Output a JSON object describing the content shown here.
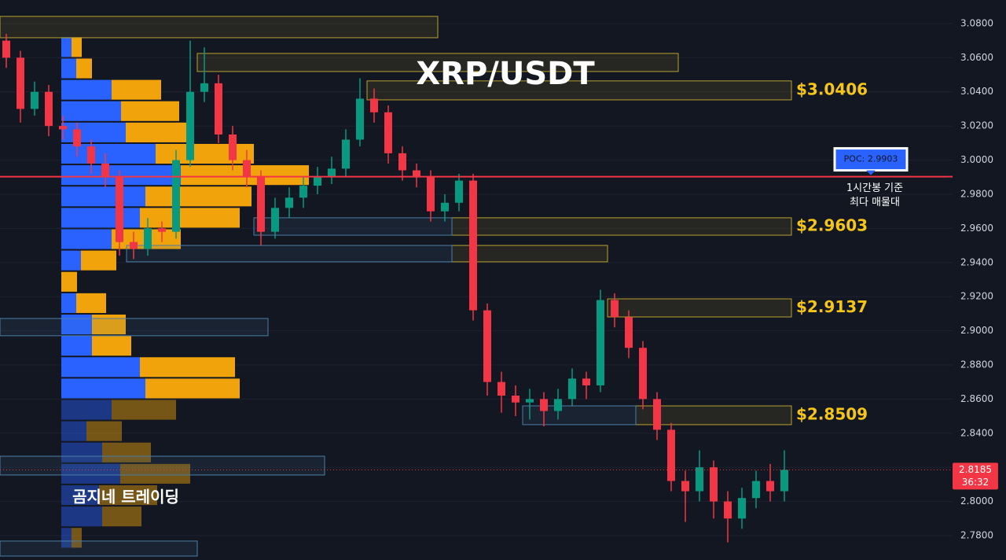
{
  "chart_data": {
    "type": "candlestick",
    "title": "XRP/USDT",
    "watermark": "곰지네 트레이딩",
    "ylim": [
      2.7657,
      3.0938
    ],
    "yticks": [
      {
        "value": 3.08,
        "label": "3.0800"
      },
      {
        "value": 3.06,
        "label": "3.0600"
      },
      {
        "value": 3.04,
        "label": "3.0400"
      },
      {
        "value": 3.02,
        "label": "3.0200"
      },
      {
        "value": 3.0,
        "label": "3.0000"
      },
      {
        "value": 2.98,
        "label": "2.9800"
      },
      {
        "value": 2.96,
        "label": "2.9600"
      },
      {
        "value": 2.94,
        "label": "2.9400"
      },
      {
        "value": 2.92,
        "label": "2.9200"
      },
      {
        "value": 2.9,
        "label": "2.9000"
      },
      {
        "value": 2.88,
        "label": "2.8800"
      },
      {
        "value": 2.86,
        "label": "2.8600"
      },
      {
        "value": 2.84,
        "label": "2.8400"
      },
      {
        "value": 2.82,
        "label": "2.8200"
      },
      {
        "value": 2.8,
        "label": "2.8000"
      },
      {
        "value": 2.78,
        "label": "2.7800"
      }
    ],
    "up_color": "#089981",
    "down_color": "#f23645",
    "open": [
      3.07,
      3.06,
      3.03,
      3.04,
      3.02,
      3.018,
      3.008,
      2.998,
      2.99,
      2.952,
      2.948,
      2.96,
      2.958,
      3.0,
      3.04,
      3.045,
      3.015,
      3.0,
      2.99,
      2.958,
      2.972,
      2.978,
      2.985,
      2.99,
      2.995,
      3.012,
      3.036,
      3.028,
      3.004,
      2.994,
      2.99,
      2.97,
      2.975,
      2.988,
      2.912,
      2.87,
      2.862,
      2.858,
      2.86,
      2.853,
      2.86,
      2.872,
      2.868,
      2.918,
      2.908,
      2.89,
      2.86,
      2.842,
      2.812,
      2.806,
      2.82,
      2.8,
      2.79,
      2.802,
      2.812,
      2.806
    ],
    "high": [
      3.074,
      3.064,
      3.046,
      3.044,
      3.026,
      3.022,
      3.012,
      3.004,
      2.994,
      2.958,
      2.966,
      2.964,
      3.006,
      3.07,
      3.066,
      3.05,
      3.02,
      3.006,
      2.994,
      2.978,
      2.984,
      2.99,
      2.996,
      3.002,
      3.018,
      3.048,
      3.042,
      3.032,
      3.008,
      2.998,
      2.994,
      2.98,
      2.992,
      2.992,
      2.916,
      2.876,
      2.868,
      2.866,
      2.864,
      2.866,
      2.878,
      2.876,
      2.924,
      2.922,
      2.912,
      2.894,
      2.864,
      2.846,
      2.818,
      2.83,
      2.824,
      2.806,
      2.808,
      2.818,
      2.822,
      2.83
    ],
    "low": [
      3.054,
      3.022,
      3.026,
      3.014,
      3.012,
      3.002,
      2.992,
      2.984,
      2.944,
      2.942,
      2.944,
      2.952,
      2.954,
      2.996,
      3.034,
      3.01,
      2.994,
      2.984,
      2.95,
      2.954,
      2.966,
      2.972,
      2.98,
      2.986,
      2.99,
      3.008,
      3.022,
      2.998,
      2.988,
      2.984,
      2.964,
      2.964,
      2.97,
      2.906,
      2.862,
      2.852,
      2.85,
      2.848,
      2.844,
      2.848,
      2.856,
      2.86,
      2.864,
      2.902,
      2.884,
      2.854,
      2.836,
      2.806,
      2.788,
      2.8,
      2.79,
      2.776,
      2.784,
      2.796,
      2.8,
      2.8
    ],
    "close": [
      3.06,
      3.03,
      3.04,
      3.02,
      3.018,
      3.008,
      2.998,
      2.99,
      2.952,
      2.948,
      2.96,
      2.958,
      3.0,
      3.04,
      3.045,
      3.015,
      3.0,
      2.99,
      2.958,
      2.972,
      2.978,
      2.985,
      2.99,
      2.995,
      3.012,
      3.036,
      3.028,
      3.004,
      2.994,
      2.99,
      2.97,
      2.975,
      2.988,
      2.912,
      2.87,
      2.862,
      2.858,
      2.86,
      2.853,
      2.86,
      2.872,
      2.868,
      2.918,
      2.908,
      2.89,
      2.86,
      2.842,
      2.812,
      2.806,
      2.82,
      2.8,
      2.79,
      2.802,
      2.812,
      2.806,
      2.8185
    ],
    "profile": {
      "levels": [
        3.0662,
        3.0537,
        3.0412,
        3.0287,
        3.0162,
        3.0037,
        2.9912,
        2.9787,
        2.9662,
        2.9537,
        2.9412,
        2.9287,
        2.9162,
        2.9037,
        2.8912,
        2.8787,
        2.8662,
        2.8537,
        2.8412,
        2.8287,
        2.8162,
        2.8037,
        2.7912,
        2.7787
      ],
      "buy": [
        13,
        19,
        64,
        76,
        82,
        120,
        152,
        107,
        100,
        64,
        25,
        0,
        19,
        39,
        39,
        100,
        107,
        64,
        32,
        52,
        75,
        48,
        52,
        13
      ],
      "sell": [
        13,
        20,
        63,
        74,
        82,
        125,
        163,
        135,
        127,
        88,
        45,
        20,
        38,
        43,
        50,
        121,
        120,
        82,
        45,
        62,
        89,
        74,
        50,
        13
      ],
      "buy_color": "#2962ff",
      "sell_color": "#f0a30a",
      "value_area_low": 2.86
    },
    "zones": [
      {
        "low": 3.0717,
        "high": 3.0842,
        "from": 0,
        "to": 30,
        "color": "#b8a030"
      },
      {
        "low": 3.0519,
        "high": 3.0625,
        "from": 14,
        "to": 47,
        "color": "#b8a030"
      },
      {
        "low": 3.0353,
        "high": 3.0464,
        "from": 26,
        "to": 55,
        "color": "#b8a030",
        "label": "$3.0406"
      },
      {
        "low": 2.956,
        "high": 2.9662,
        "from": 32,
        "to": 55,
        "color": "#b8a030",
        "label": "$2.9603"
      },
      {
        "low": 2.9404,
        "high": 2.95,
        "from": 32,
        "to": 42,
        "color": "#b8a030"
      },
      {
        "low": 2.9081,
        "high": 2.9187,
        "from": 43,
        "to": 55,
        "color": "#b8a030",
        "label": "$2.9137"
      },
      {
        "low": 2.845,
        "high": 2.856,
        "from": 45,
        "to": 55,
        "color": "#b8a030",
        "label": "$2.8509"
      },
      {
        "low": 2.956,
        "high": 2.9662,
        "from": 18,
        "to": 31,
        "color": "#4a7fa8"
      },
      {
        "low": 2.9404,
        "high": 2.95,
        "from": 9,
        "to": 31,
        "color": "#4a7fa8"
      },
      {
        "low": 2.8971,
        "high": 2.9072,
        "from": 0,
        "to": 18,
        "color": "#4a7fa8"
      },
      {
        "low": 2.845,
        "high": 2.856,
        "from": 37,
        "to": 44,
        "color": "#4a7fa8"
      },
      {
        "low": 2.8155,
        "high": 2.8265,
        "from": 0,
        "to": 22,
        "color": "#4a7fa8"
      },
      {
        "low": 2.768,
        "high": 2.7768,
        "from": 0,
        "to": 13,
        "color": "#4a7fa8"
      }
    ],
    "poc": {
      "value": 2.9903,
      "label": "POC: 2.9903",
      "color": "#f23645"
    },
    "poc_note": [
      "1시간봉 기준",
      "최다 매물대"
    ],
    "price_tag": 2.8185,
    "countdown": "36:32"
  }
}
